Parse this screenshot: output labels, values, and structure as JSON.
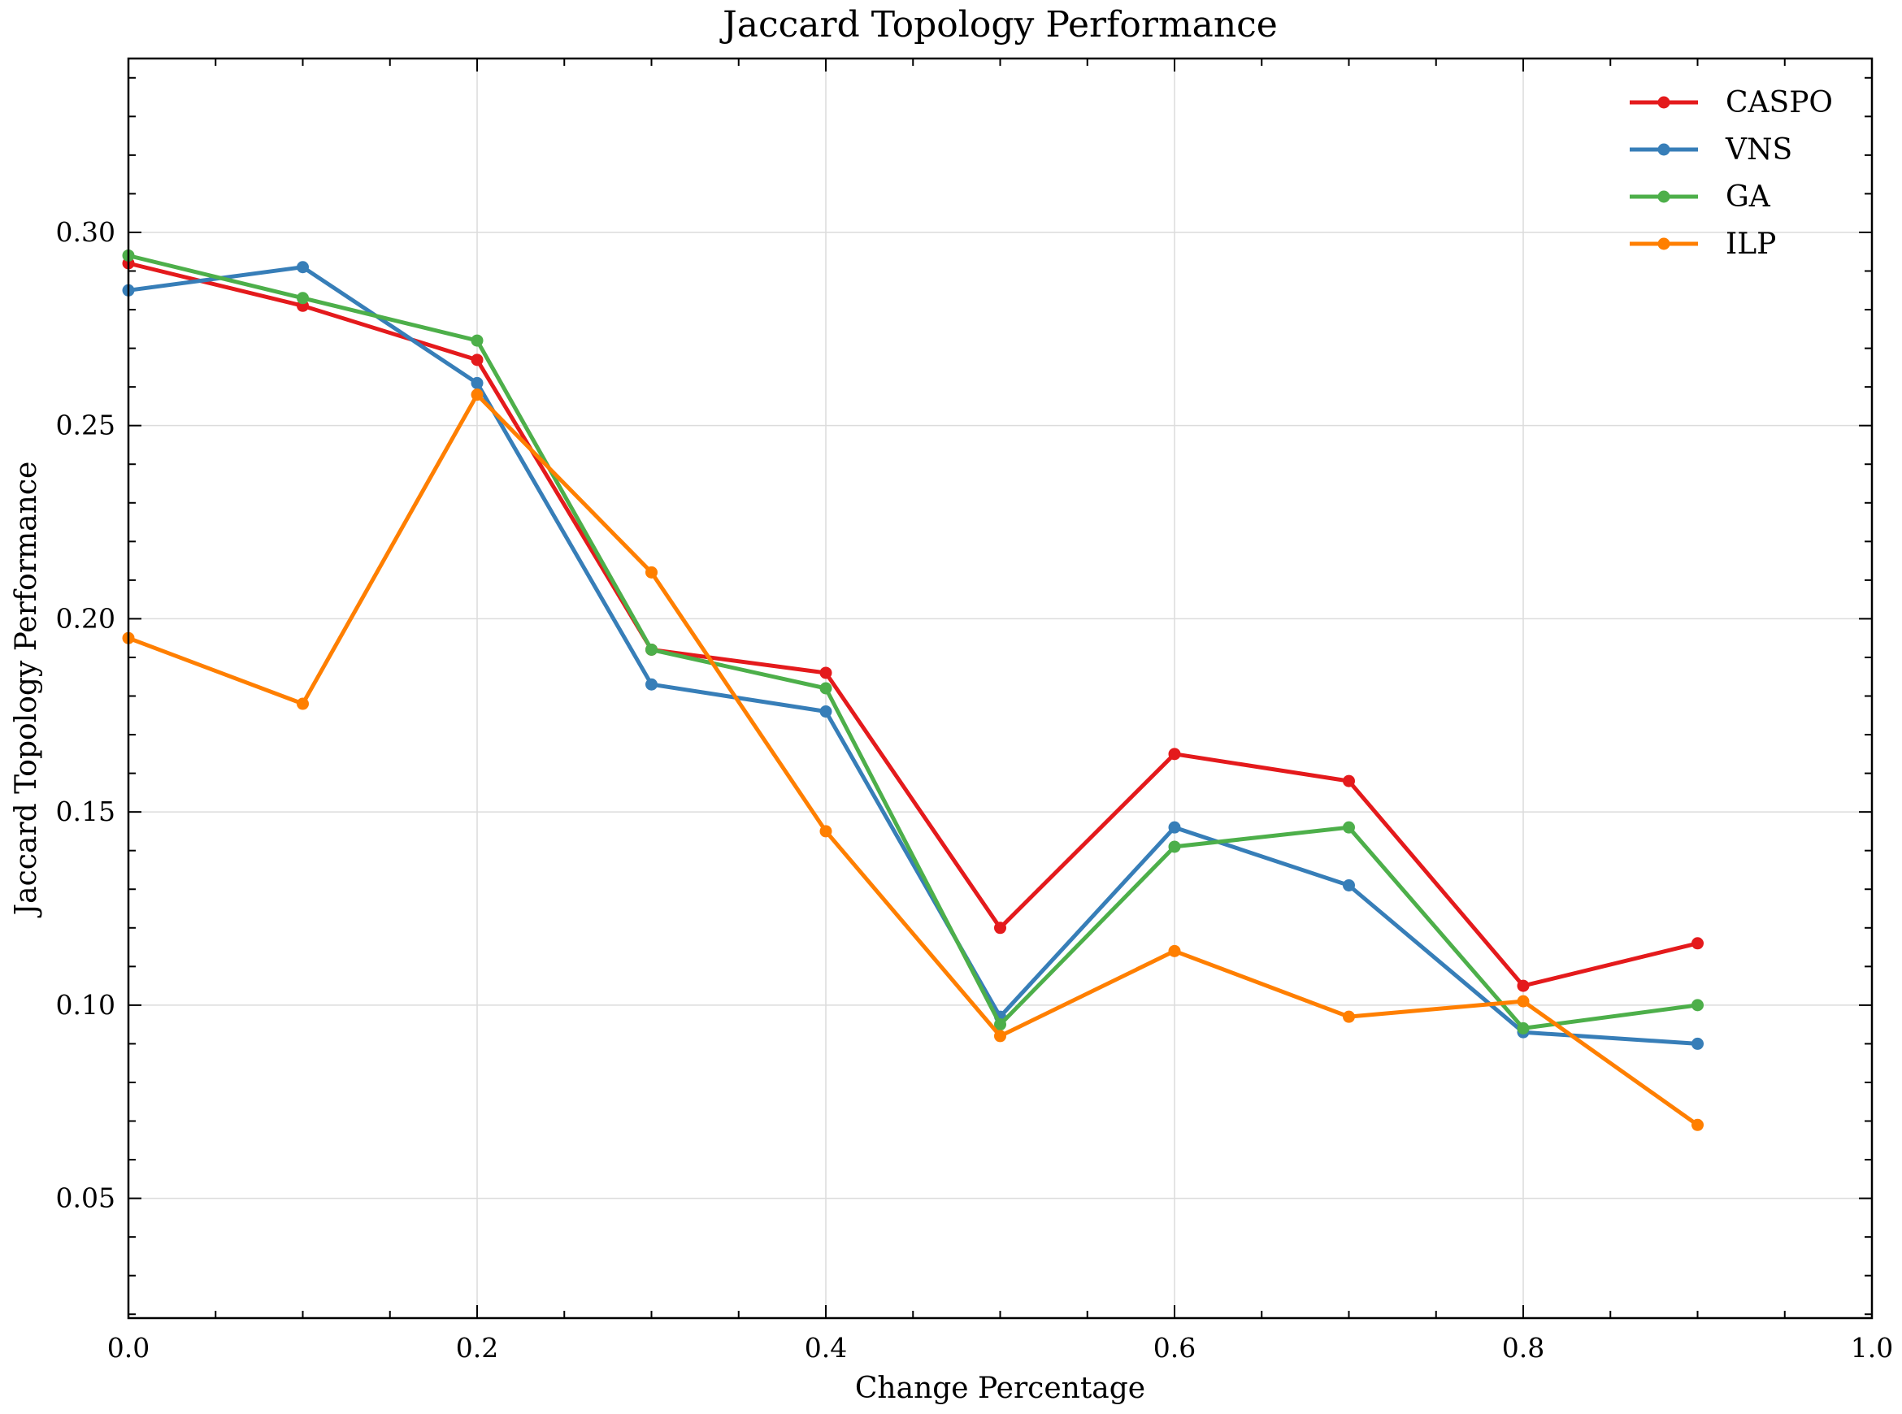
{
  "chart_data": {
    "type": "line",
    "title": "Jaccard Topology Performance",
    "xlabel": "Change Percentage",
    "ylabel": "Jaccard Topology Performance",
    "xlim": [
      0.0,
      1.0
    ],
    "ylim": [
      0.019,
      0.345
    ],
    "x_ticks": [
      0.0,
      0.2,
      0.4,
      0.6,
      0.8,
      1.0
    ],
    "x_tick_labels": [
      "0.0",
      "0.2",
      "0.4",
      "0.6",
      "0.8",
      "1.0"
    ],
    "y_ticks": [
      0.05,
      0.1,
      0.15,
      0.2,
      0.25,
      0.3
    ],
    "y_tick_labels": [
      "0.05",
      "0.10",
      "0.15",
      "0.20",
      "0.25",
      "0.30"
    ],
    "grid": true,
    "legend_position": "top-right",
    "x": [
      0.0,
      0.1,
      0.2,
      0.3,
      0.4,
      0.5,
      0.6,
      0.7,
      0.8,
      0.9
    ],
    "series": [
      {
        "name": "CASPO",
        "color": "#e41a1c",
        "values": [
          0.292,
          0.281,
          0.267,
          0.192,
          0.186,
          0.12,
          0.165,
          0.158,
          0.105,
          0.116
        ]
      },
      {
        "name": "VNS",
        "color": "#377eb8",
        "values": [
          0.285,
          0.291,
          0.261,
          0.183,
          0.176,
          0.097,
          0.146,
          0.131,
          0.093,
          0.09
        ]
      },
      {
        "name": "GA",
        "color": "#4daf4a",
        "values": [
          0.294,
          0.283,
          0.272,
          0.192,
          0.182,
          0.095,
          0.141,
          0.146,
          0.094,
          0.1
        ]
      },
      {
        "name": "ILP",
        "color": "#ff7f00",
        "values": [
          0.195,
          0.178,
          0.258,
          0.212,
          0.145,
          0.092,
          0.114,
          0.097,
          0.101,
          0.069
        ]
      }
    ]
  }
}
